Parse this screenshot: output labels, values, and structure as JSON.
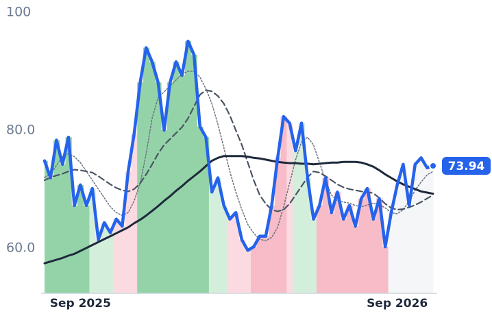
{
  "chart_data": {
    "type": "line",
    "categories": [
      null,
      null,
      null,
      null,
      null,
      null,
      "Sep 2025",
      null,
      null,
      null,
      null,
      null,
      null,
      null,
      null,
      null,
      null,
      null,
      null,
      null,
      null,
      null,
      null,
      null,
      null,
      null,
      null,
      null,
      null,
      null,
      null,
      null,
      null,
      null,
      null,
      null,
      null,
      null,
      null,
      null,
      null,
      null,
      null,
      null,
      null,
      null,
      null,
      null,
      null,
      null,
      null,
      null,
      null,
      null,
      null,
      null,
      null,
      null,
      null,
      "Sep 2026",
      null,
      null,
      null,
      null,
      null,
      null
    ],
    "series": [
      {
        "color": "#2563eb",
        "style": "solid",
        "width": 4.5,
        "values": [
          74.8,
          71.9,
          78.3,
          74.2,
          78.8,
          67.2,
          70.7,
          67.2,
          70.1,
          61.4,
          64.3,
          62.6,
          64.9,
          63.7,
          73.0,
          79.4,
          88.1,
          94.0,
          91.6,
          88.1,
          80.0,
          88.1,
          91.6,
          89.3,
          95.1,
          92.8,
          80.6,
          78.8,
          69.5,
          71.9,
          67.2,
          64.9,
          66.0,
          61.4,
          59.6,
          60.2,
          62.0,
          62.0,
          67.2,
          75.3,
          82.3,
          81.2,
          76.5,
          81.2,
          71.9,
          64.9,
          67.2,
          71.9,
          66.0,
          69.5,
          64.9,
          67.2,
          63.7,
          68.4,
          70.1,
          64.9,
          68.4,
          60.2,
          66.0,
          70.7,
          74.2,
          67.2,
          74.2,
          75.3,
          73.6,
          73.94
        ],
        "fill_colors": [
          "#94d3a8",
          "#94d3a8",
          "#94d3a8",
          "#94d3a8",
          "#94d3a8",
          "#94d3a8",
          "#94d3a8",
          "#94d3a8",
          "#d4eedc",
          "#d4eedc",
          "#d4eedc",
          "#d4eedc",
          "#fbdbe1",
          "#fbdbe1",
          "#fbdbe1",
          "#fbdbe1",
          "#94d3a8",
          "#94d3a8",
          "#94d3a8",
          "#94d3a8",
          "#94d3a8",
          "#94d3a8",
          "#94d3a8",
          "#94d3a8",
          "#94d3a8",
          "#94d3a8",
          "#94d3a8",
          "#94d3a8",
          "#d4eedc",
          "#d4eedc",
          "#d4eedc",
          "#fbdbe1",
          "#fbdbe1",
          "#fbdbe1",
          "#fbdbe1",
          "#f7bcc8",
          "#f7bcc8",
          "#f7bcc8",
          "#f7bcc8",
          "#f7bcc8",
          "#f7bcc8",
          "#fbdbe1",
          "#d4eedc",
          "#d4eedc",
          "#d4eedc",
          "#d4eedc",
          "#f7bcc8",
          "#f7bcc8",
          "#f7bcc8",
          "#f7bcc8",
          "#f7bcc8",
          "#f7bcc8",
          "#f7bcc8",
          "#f7bcc8",
          "#f7bcc8",
          "#f7bcc8",
          "#f7bcc8",
          "#f7bcc8",
          "#f4f6f8",
          "#f4f6f8",
          "#f4f6f8",
          "#f4f6f8",
          "#f4f6f8",
          "#f4f6f8",
          "#f4f6f8",
          "#f4f6f8"
        ]
      },
      {
        "color": "#6b7280",
        "style": "dotted",
        "width": 1.5,
        "values": [
          72,
          72.5,
          74,
          75.5,
          76,
          75.5,
          74.5,
          73,
          71.5,
          70,
          68.5,
          67,
          66,
          65.5,
          66,
          68,
          71,
          76,
          82,
          85.5,
          86.5,
          87.5,
          88.5,
          89.5,
          90,
          90,
          89,
          87,
          84.5,
          81,
          77,
          73,
          69.5,
          66.5,
          64,
          62.5,
          61.5,
          61.2,
          61.8,
          63.5,
          67,
          71,
          75,
          78,
          78.8,
          77.5,
          74.5,
          71.5,
          69,
          68,
          67.8,
          67.6,
          67.2,
          67,
          67.3,
          67.6,
          67.4,
          66.8,
          66,
          65.8,
          66.5,
          68,
          69.8,
          71.2,
          72.4,
          73
        ]
      },
      {
        "color": "#4b5563",
        "style": "dashed",
        "width": 2.2,
        "values": [
          71.5,
          72,
          72.3,
          72.6,
          73,
          73.3,
          73.2,
          73,
          72.8,
          72.2,
          71.5,
          70.8,
          70.2,
          69.8,
          69.6,
          70,
          71,
          72.5,
          74.2,
          76,
          77.5,
          78.5,
          79.5,
          80.5,
          82,
          84,
          86,
          86.8,
          86.6,
          85.8,
          84.5,
          82.5,
          80,
          77.5,
          74.5,
          71.5,
          69,
          67.5,
          66.5,
          66.2,
          66.5,
          67.5,
          69,
          70.5,
          72,
          73,
          72.8,
          72.2,
          71.5,
          70.8,
          70.3,
          70,
          69.8,
          69.6,
          69.5,
          69.3,
          68.5,
          67.5,
          66.8,
          66.5,
          66.6,
          66.9,
          67.3,
          67.8,
          68.4,
          69
        ]
      },
      {
        "color": "#1e293b",
        "style": "solid",
        "width": 3,
        "values": [
          57.4,
          57.7,
          58,
          58.3,
          58.7,
          59,
          59.5,
          60,
          60.5,
          61,
          61.5,
          62,
          62.5,
          63,
          63.5,
          64.2,
          64.8,
          65.5,
          66.3,
          67.1,
          68,
          68.8,
          69.7,
          70.5,
          71.4,
          72.2,
          73,
          73.9,
          74.8,
          75.3,
          75.6,
          75.6,
          75.6,
          75.6,
          75.5,
          75.3,
          75.2,
          75,
          74.8,
          74.6,
          74.5,
          74.4,
          74.4,
          74.3,
          74.3,
          74.2,
          74.3,
          74.4,
          74.5,
          74.5,
          74.6,
          74.6,
          74.6,
          74.5,
          74.2,
          73.8,
          73.2,
          72.5,
          71.9,
          71.3,
          70.8,
          70.4,
          70,
          69.6,
          69.4,
          69.2
        ]
      }
    ],
    "annotation": "73.94",
    "ylim": [
      52.3,
      100
    ],
    "yticks": [
      {
        "value": 60,
        "label": "60.0"
      },
      {
        "value": 80,
        "label": "80.0"
      },
      100
    ]
  }
}
